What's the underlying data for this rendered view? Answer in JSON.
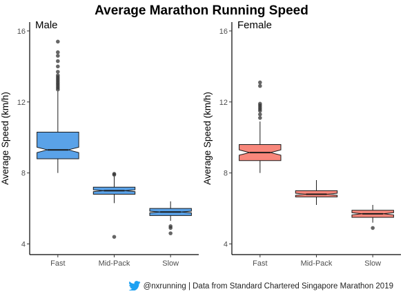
{
  "chart_data": {
    "type": "boxplot",
    "title": "Average Marathon Running Speed",
    "ylabel": "Average Speed (km/h)",
    "xlabel": "",
    "ylim": [
      3.4,
      16.5
    ],
    "yticks": [
      4,
      8,
      12,
      16
    ],
    "categories": [
      "Fast",
      "Mid-Pack",
      "Slow"
    ],
    "grid": false,
    "panels": [
      {
        "name": "Male",
        "color": "#5aa2e8",
        "groups": [
          {
            "category": "Fast",
            "whisker_low": 8.0,
            "q1": 8.8,
            "median": 9.3,
            "q3": 10.3,
            "whisker_high": 12.6,
            "notch_low": 9.15,
            "notch_high": 9.45,
            "outliers": [
              12.7,
              12.8,
              12.9,
              13.0,
              13.1,
              13.2,
              13.3,
              13.4,
              13.5,
              13.7,
              14.0,
              14.3,
              14.6,
              14.8,
              15.4
            ]
          },
          {
            "category": "Mid-Pack",
            "whisker_low": 6.3,
            "q1": 6.8,
            "median": 7.0,
            "q3": 7.2,
            "whisker_high": 7.8,
            "notch_low": 6.95,
            "notch_high": 7.05,
            "outliers": [
              4.4,
              7.9,
              7.95
            ]
          },
          {
            "category": "Slow",
            "whisker_low": 5.3,
            "q1": 5.6,
            "median": 5.8,
            "q3": 6.0,
            "whisker_high": 6.4,
            "notch_low": 5.75,
            "notch_high": 5.85,
            "outliers": [
              4.6,
              4.9,
              5.0
            ]
          }
        ]
      },
      {
        "name": "Female",
        "color": "#f8877b",
        "groups": [
          {
            "category": "Fast",
            "whisker_low": 8.0,
            "q1": 8.7,
            "median": 9.15,
            "q3": 9.6,
            "whisker_high": 10.9,
            "notch_low": 9.0,
            "notch_high": 9.3,
            "outliers": [
              11.1,
              11.3,
              11.5,
              11.6,
              11.7,
              11.8,
              11.9,
              12.9,
              13.1
            ]
          },
          {
            "category": "Mid-Pack",
            "whisker_low": 6.2,
            "q1": 6.65,
            "median": 6.8,
            "q3": 7.0,
            "whisker_high": 7.6,
            "notch_low": 6.74,
            "notch_high": 6.86,
            "outliers": []
          },
          {
            "category": "Slow",
            "whisker_low": 5.2,
            "q1": 5.5,
            "median": 5.7,
            "q3": 5.9,
            "whisker_high": 6.2,
            "notch_low": 5.64,
            "notch_high": 5.76,
            "outliers": [
              4.9
            ]
          }
        ]
      }
    ]
  },
  "footer": {
    "handle": "@nxrunning",
    "source": " | Data from Standard Chartered Singapore Marathon 2019",
    "icon": "twitter-bird-icon",
    "icon_color": "#1da1f2"
  }
}
